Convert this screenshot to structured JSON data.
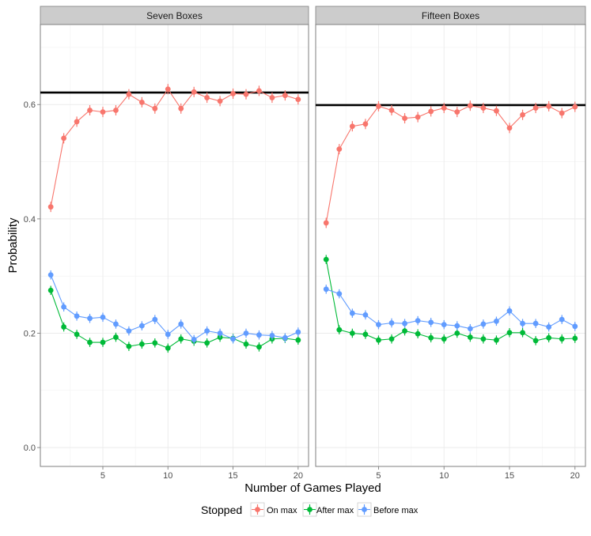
{
  "chart_data": {
    "type": "line",
    "facet_by": "box_condition",
    "x": [
      1,
      2,
      3,
      4,
      5,
      6,
      7,
      8,
      9,
      10,
      11,
      12,
      13,
      14,
      15,
      16,
      17,
      18,
      19,
      20
    ],
    "xlim": [
      0.2,
      20.8
    ],
    "ylim": [
      -0.033,
      0.74
    ],
    "xticks": [
      5,
      10,
      15,
      20
    ],
    "yticks": [
      0.0,
      0.2,
      0.4,
      0.6
    ],
    "ytick_labels": [
      "0.0",
      "0.2",
      "0.4",
      "0.6"
    ],
    "xlabel": "Number of Games Played",
    "ylabel": "Probability",
    "legend": {
      "title": "Stopped",
      "position": "bottom",
      "entries": [
        {
          "name": "On max",
          "color": "#F8766D"
        },
        {
          "name": "After max",
          "color": "#00BA38"
        },
        {
          "name": "Before max",
          "color": "#619CFF"
        }
      ]
    },
    "panels": [
      {
        "title": "Seven Boxes",
        "reference_line": 0.621,
        "series": [
          {
            "name": "On max",
            "color": "#F8766D",
            "values": [
              0.421,
              0.541,
              0.57,
              0.59,
              0.587,
              0.59,
              0.618,
              0.604,
              0.593,
              0.627,
              0.593,
              0.622,
              0.612,
              0.606,
              0.619,
              0.618,
              0.624,
              0.612,
              0.616,
              0.609
            ],
            "error": [
              0.009,
              0.009,
              0.009,
              0.009,
              0.009,
              0.009,
              0.009,
              0.009,
              0.009,
              0.009,
              0.009,
              0.009,
              0.009,
              0.009,
              0.009,
              0.009,
              0.009,
              0.009,
              0.009,
              0.009
            ]
          },
          {
            "name": "After max",
            "color": "#00BA38",
            "values": [
              0.275,
              0.211,
              0.198,
              0.184,
              0.184,
              0.193,
              0.177,
              0.181,
              0.183,
              0.174,
              0.19,
              0.186,
              0.183,
              0.193,
              0.191,
              0.181,
              0.176,
              0.19,
              0.191,
              0.188
            ],
            "error": [
              0.008,
              0.008,
              0.008,
              0.008,
              0.008,
              0.008,
              0.008,
              0.008,
              0.008,
              0.008,
              0.008,
              0.008,
              0.008,
              0.008,
              0.008,
              0.008,
              0.008,
              0.008,
              0.008,
              0.008
            ]
          },
          {
            "name": "Before max",
            "color": "#619CFF",
            "values": [
              0.302,
              0.246,
              0.23,
              0.226,
              0.228,
              0.216,
              0.204,
              0.213,
              0.224,
              0.198,
              0.216,
              0.189,
              0.204,
              0.2,
              0.19,
              0.2,
              0.197,
              0.196,
              0.192,
              0.202
            ],
            "error": [
              0.008,
              0.008,
              0.008,
              0.008,
              0.008,
              0.008,
              0.008,
              0.008,
              0.008,
              0.008,
              0.008,
              0.008,
              0.008,
              0.008,
              0.008,
              0.008,
              0.008,
              0.008,
              0.008,
              0.008
            ]
          }
        ]
      },
      {
        "title": "Fifteen Boxes",
        "reference_line": 0.599,
        "series": [
          {
            "name": "On max",
            "color": "#F8766D",
            "values": [
              0.393,
              0.522,
              0.562,
              0.566,
              0.597,
              0.59,
              0.576,
              0.578,
              0.588,
              0.594,
              0.587,
              0.598,
              0.594,
              0.589,
              0.559,
              0.582,
              0.594,
              0.597,
              0.585,
              0.596
            ],
            "error": [
              0.009,
              0.009,
              0.009,
              0.009,
              0.009,
              0.009,
              0.009,
              0.009,
              0.009,
              0.009,
              0.009,
              0.009,
              0.009,
              0.009,
              0.009,
              0.009,
              0.009,
              0.009,
              0.009,
              0.009
            ]
          },
          {
            "name": "After max",
            "color": "#00BA38",
            "values": [
              0.329,
              0.206,
              0.2,
              0.198,
              0.188,
              0.19,
              0.204,
              0.199,
              0.192,
              0.19,
              0.2,
              0.193,
              0.19,
              0.188,
              0.201,
              0.201,
              0.187,
              0.192,
              0.19,
              0.191
            ],
            "error": [
              0.008,
              0.008,
              0.008,
              0.008,
              0.008,
              0.008,
              0.008,
              0.008,
              0.008,
              0.008,
              0.008,
              0.008,
              0.008,
              0.008,
              0.008,
              0.008,
              0.008,
              0.008,
              0.008,
              0.008
            ]
          },
          {
            "name": "Before max",
            "color": "#619CFF",
            "values": [
              0.277,
              0.269,
              0.235,
              0.232,
              0.215,
              0.218,
              0.217,
              0.222,
              0.219,
              0.215,
              0.213,
              0.208,
              0.216,
              0.221,
              0.239,
              0.217,
              0.217,
              0.211,
              0.224,
              0.212
            ],
            "error": [
              0.008,
              0.008,
              0.008,
              0.008,
              0.008,
              0.008,
              0.008,
              0.008,
              0.008,
              0.008,
              0.008,
              0.008,
              0.008,
              0.008,
              0.008,
              0.008,
              0.008,
              0.008,
              0.008,
              0.008
            ]
          }
        ]
      }
    ]
  }
}
